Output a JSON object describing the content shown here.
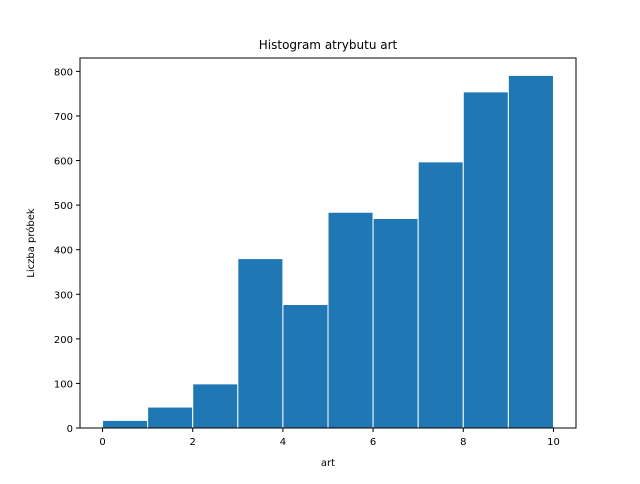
{
  "chart_data": {
    "type": "bar",
    "title": "Histogram atrybutu art",
    "xlabel": "art",
    "ylabel": "Liczba próbek",
    "bin_edges": [
      0,
      1,
      2,
      3,
      4,
      5,
      6,
      7,
      8,
      9,
      10
    ],
    "values": [
      17,
      47,
      99,
      380,
      277,
      484,
      470,
      597,
      754,
      791
    ],
    "xlim": [
      -0.5,
      10.5
    ],
    "ylim": [
      0,
      830
    ],
    "xticks": [
      0,
      2,
      4,
      6,
      8,
      10
    ],
    "yticks": [
      0,
      100,
      200,
      300,
      400,
      500,
      600,
      700,
      800
    ],
    "bar_color": "#1f77b4",
    "edge_color": "#ffffff",
    "grid": false,
    "legend": null
  }
}
